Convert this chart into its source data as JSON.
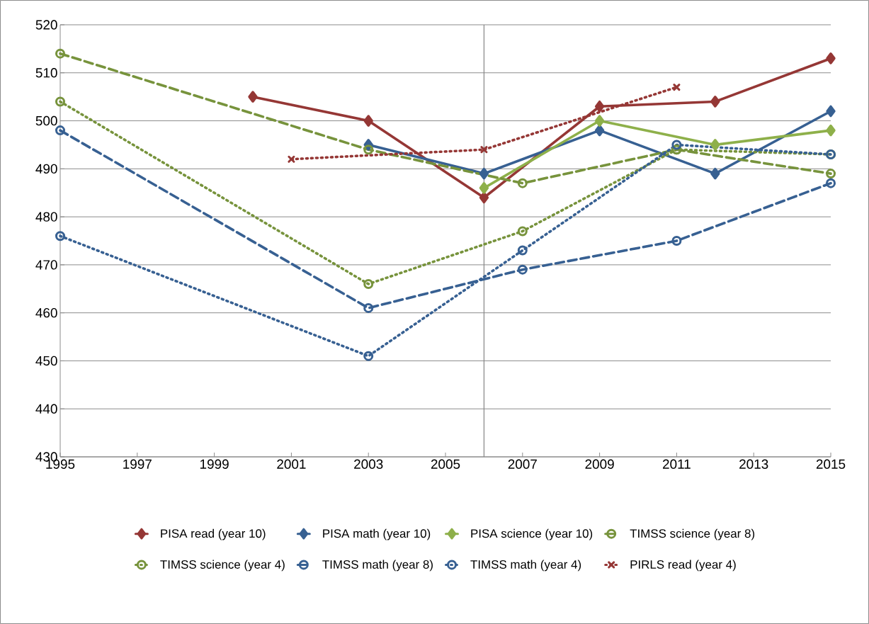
{
  "chart_data": {
    "type": "line",
    "xlim": [
      1995,
      2015
    ],
    "ylim": [
      430,
      520
    ],
    "xticks": [
      1995,
      1997,
      1999,
      2001,
      2003,
      2005,
      2007,
      2009,
      2011,
      2013,
      2015
    ],
    "yticks": [
      430,
      440,
      450,
      460,
      470,
      480,
      490,
      500,
      510,
      520
    ],
    "grid": "y",
    "legend": "bottom",
    "ref_lines": [
      {
        "axis": "x",
        "value": 2006,
        "color": "#868686"
      }
    ],
    "series": [
      {
        "name": "PISA read (year 10)",
        "color": "#953735",
        "marker": "diamond",
        "line_style": "solid",
        "x": [
          2000,
          2003,
          2006,
          2009,
          2012,
          2015
        ],
        "values": [
          505,
          500,
          484,
          503,
          504,
          513
        ]
      },
      {
        "name": "PISA math (year 10)",
        "color": "#376092",
        "marker": "diamond",
        "line_style": "solid",
        "x": [
          2003,
          2006,
          2009,
          2012,
          2015
        ],
        "values": [
          495,
          489,
          498,
          489,
          502
        ]
      },
      {
        "name": "PISA science (year 10)",
        "color": "#8eb04a",
        "marker": "diamond",
        "line_style": "solid",
        "x": [
          2006,
          2009,
          2012,
          2015
        ],
        "values": [
          486,
          500,
          495,
          498
        ]
      },
      {
        "name": "TIMSS science (year 8)",
        "color": "#77933c",
        "marker": "circle",
        "line_style": "dashed",
        "x": [
          1995,
          2003,
          2007,
          2011,
          2015
        ],
        "values": [
          514,
          494,
          487,
          494,
          489
        ]
      },
      {
        "name": "TIMSS science (year 4)",
        "color": "#77933c",
        "marker": "circle",
        "line_style": "dotted",
        "x": [
          1995,
          2003,
          2007,
          2011,
          2015
        ],
        "values": [
          504,
          466,
          477,
          494,
          493
        ]
      },
      {
        "name": "TIMSS math (year 8)",
        "color": "#376092",
        "marker": "circle",
        "line_style": "dashed",
        "x": [
          1995,
          2003,
          2007,
          2011,
          2015
        ],
        "values": [
          498,
          461,
          469,
          475,
          487
        ]
      },
      {
        "name": "TIMSS math (year 4)",
        "color": "#376092",
        "marker": "circle",
        "line_style": "dotted",
        "x": [
          1995,
          2003,
          2007,
          2011,
          2015
        ],
        "values": [
          476,
          451,
          473,
          495,
          493
        ]
      },
      {
        "name": "PIRLS read (year 4)",
        "color": "#953735",
        "marker": "cross",
        "line_style": "dotted",
        "x": [
          2001,
          2006,
          2011
        ],
        "values": [
          492,
          494,
          507
        ]
      }
    ]
  }
}
